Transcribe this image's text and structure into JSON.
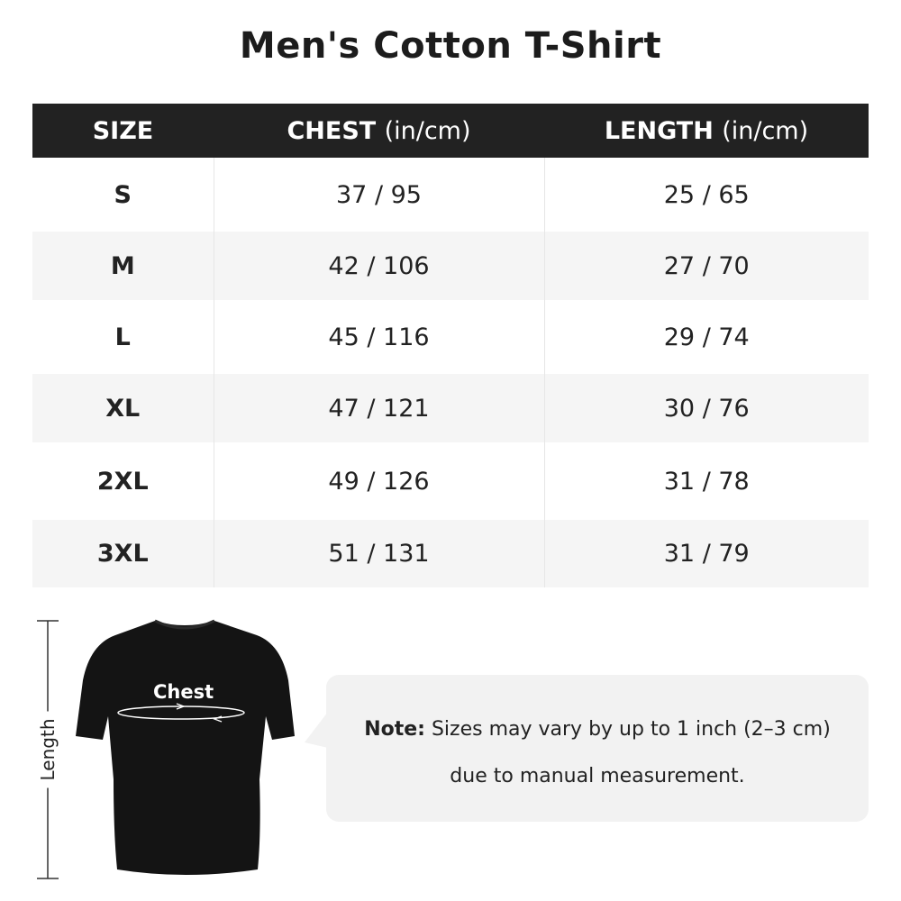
{
  "title": "Men's Cotton T-Shirt",
  "table": {
    "headers": [
      {
        "label": "SIZE",
        "unit": ""
      },
      {
        "label": "CHEST",
        "unit": "(in/cm)"
      },
      {
        "label": "LENGTH",
        "unit": "(in/cm)"
      }
    ],
    "rows": [
      {
        "size": "S",
        "chest": "37 / 95",
        "length": "25 / 65"
      },
      {
        "size": "M",
        "chest": "42 / 106",
        "length": "27 / 70"
      },
      {
        "size": "L",
        "chest": "45 / 116",
        "length": "29 / 74"
      },
      {
        "size": "XL",
        "chest": "47 / 121",
        "length": "30 / 76"
      },
      {
        "size": "2XL",
        "chest": "49 / 126",
        "length": "31 / 78"
      },
      {
        "size": "3XL",
        "chest": "51 / 131",
        "length": "31 / 79"
      }
    ]
  },
  "diagram": {
    "length_label": "Length",
    "chest_label": "Chest",
    "shirt_color": "#141414"
  },
  "note": {
    "label": "Note:",
    "line1": "Sizes may vary by up to 1 inch (2–3 cm)",
    "line2": "due to manual measurement."
  },
  "colors": {
    "header_bg": "#222222",
    "alt_row": "#f5f5f5",
    "note_bg": "#f2f2f2"
  }
}
